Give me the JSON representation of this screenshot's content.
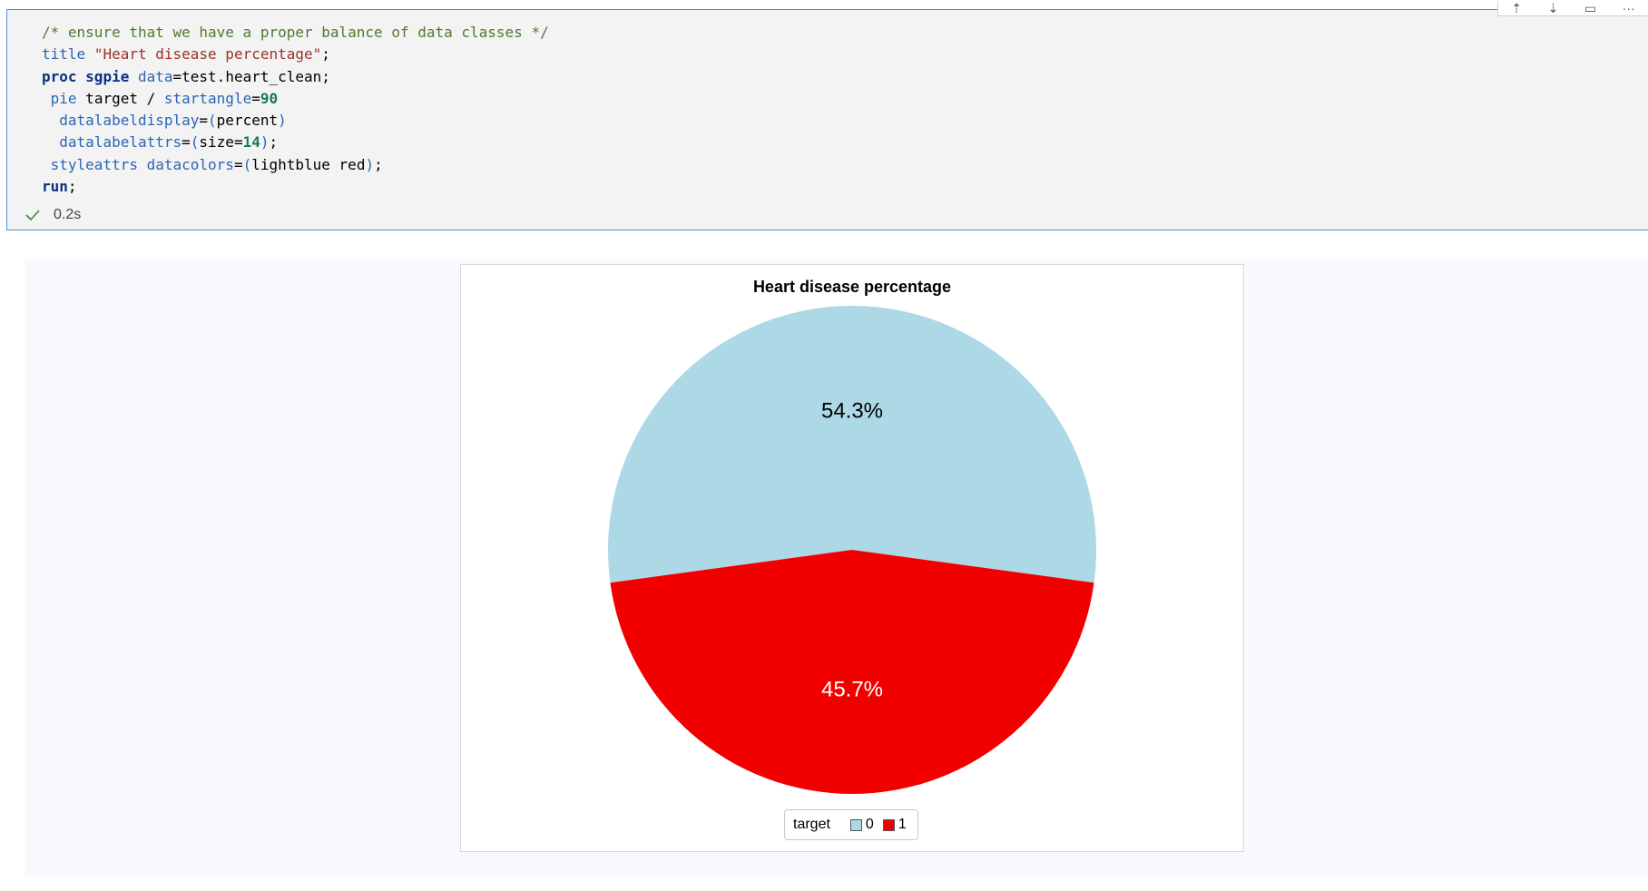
{
  "cell": {
    "code_lines": [
      [
        {
          "t": "/* ensure that we have a proper balance of data classes */",
          "c": "cm"
        }
      ],
      [
        {
          "t": "title",
          "c": "kw2"
        },
        {
          "t": " "
        },
        {
          "t": "\"Heart disease percentage\"",
          "c": "str"
        },
        {
          "t": ";"
        }
      ],
      [
        {
          "t": "proc",
          "c": "kw"
        },
        {
          "t": " "
        },
        {
          "t": "sgpie",
          "c": "kw"
        },
        {
          "t": " "
        },
        {
          "t": "data",
          "c": "kw2"
        },
        {
          "t": "=test.heart_clean;"
        }
      ],
      [
        {
          "t": " "
        },
        {
          "t": "pie",
          "c": "kw2"
        },
        {
          "t": " target / "
        },
        {
          "t": "startangle",
          "c": "kw2"
        },
        {
          "t": "="
        },
        {
          "t": "90",
          "c": "num"
        }
      ],
      [
        {
          "t": "  "
        },
        {
          "t": "datalabeldisplay",
          "c": "kw2"
        },
        {
          "t": "="
        },
        {
          "t": "(",
          "c": "par"
        },
        {
          "t": "percent"
        },
        {
          "t": ")",
          "c": "par"
        }
      ],
      [
        {
          "t": "  "
        },
        {
          "t": "datalabelattrs",
          "c": "kw2"
        },
        {
          "t": "="
        },
        {
          "t": "(",
          "c": "par"
        },
        {
          "t": "size="
        },
        {
          "t": "14",
          "c": "num"
        },
        {
          "t": ")",
          "c": "par"
        },
        {
          "t": ";"
        }
      ],
      [
        {
          "t": " "
        },
        {
          "t": "styleattrs",
          "c": "kw2"
        },
        {
          "t": " "
        },
        {
          "t": "datacolors",
          "c": "kw2"
        },
        {
          "t": "="
        },
        {
          "t": "(",
          "c": "par"
        },
        {
          "t": "lightblue red"
        },
        {
          "t": ")",
          "c": "par"
        },
        {
          "t": ";"
        }
      ],
      [
        {
          "t": "run",
          "c": "kw"
        },
        {
          "t": ";"
        }
      ]
    ],
    "status_time": "0.2s",
    "toolbar_icons": [
      "run-above-icon",
      "run-below-icon",
      "split-cell-icon",
      "more-icon"
    ]
  },
  "chart_data": {
    "type": "pie",
    "title": "Heart disease percentage",
    "legend_title": "target",
    "legend_position": "bottom",
    "start_angle": 90,
    "slices": [
      {
        "label": "0",
        "value": 54.3,
        "display": "54.3%",
        "color": "#add8e6",
        "label_color": "#000000"
      },
      {
        "label": "1",
        "value": 45.7,
        "display": "45.7%",
        "color": "#f20000",
        "label_color": "#ffffff"
      }
    ]
  }
}
